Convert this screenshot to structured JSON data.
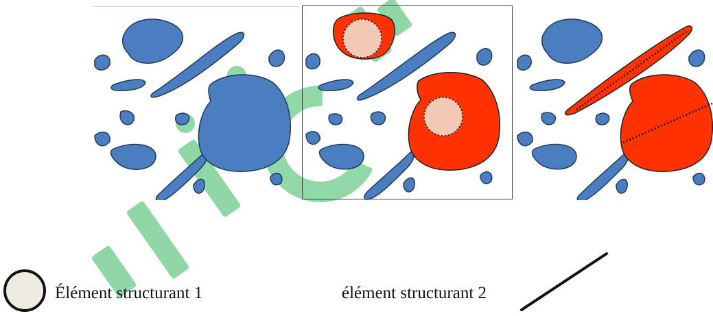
{
  "figure": {
    "panels": [
      {
        "name": "original-image",
        "region_color": "#4a7ec0"
      },
      {
        "name": "disk-erosion-result",
        "region_color": "#4a7ec0",
        "highlight_color": "#ff3300",
        "probe_fill": "#f1c9b5"
      },
      {
        "name": "line-erosion-result",
        "region_color": "#4a7ec0",
        "highlight_color": "#ff3300"
      }
    ],
    "watermark_color": "#22b14c"
  },
  "legend": {
    "element_1": {
      "label": "Élément structurant  1",
      "icon": "circle-structuring-element-icon",
      "fill": "#efece1"
    },
    "element_2": {
      "label": "élément structurant 2",
      "icon": "line-structuring-element-icon"
    }
  }
}
